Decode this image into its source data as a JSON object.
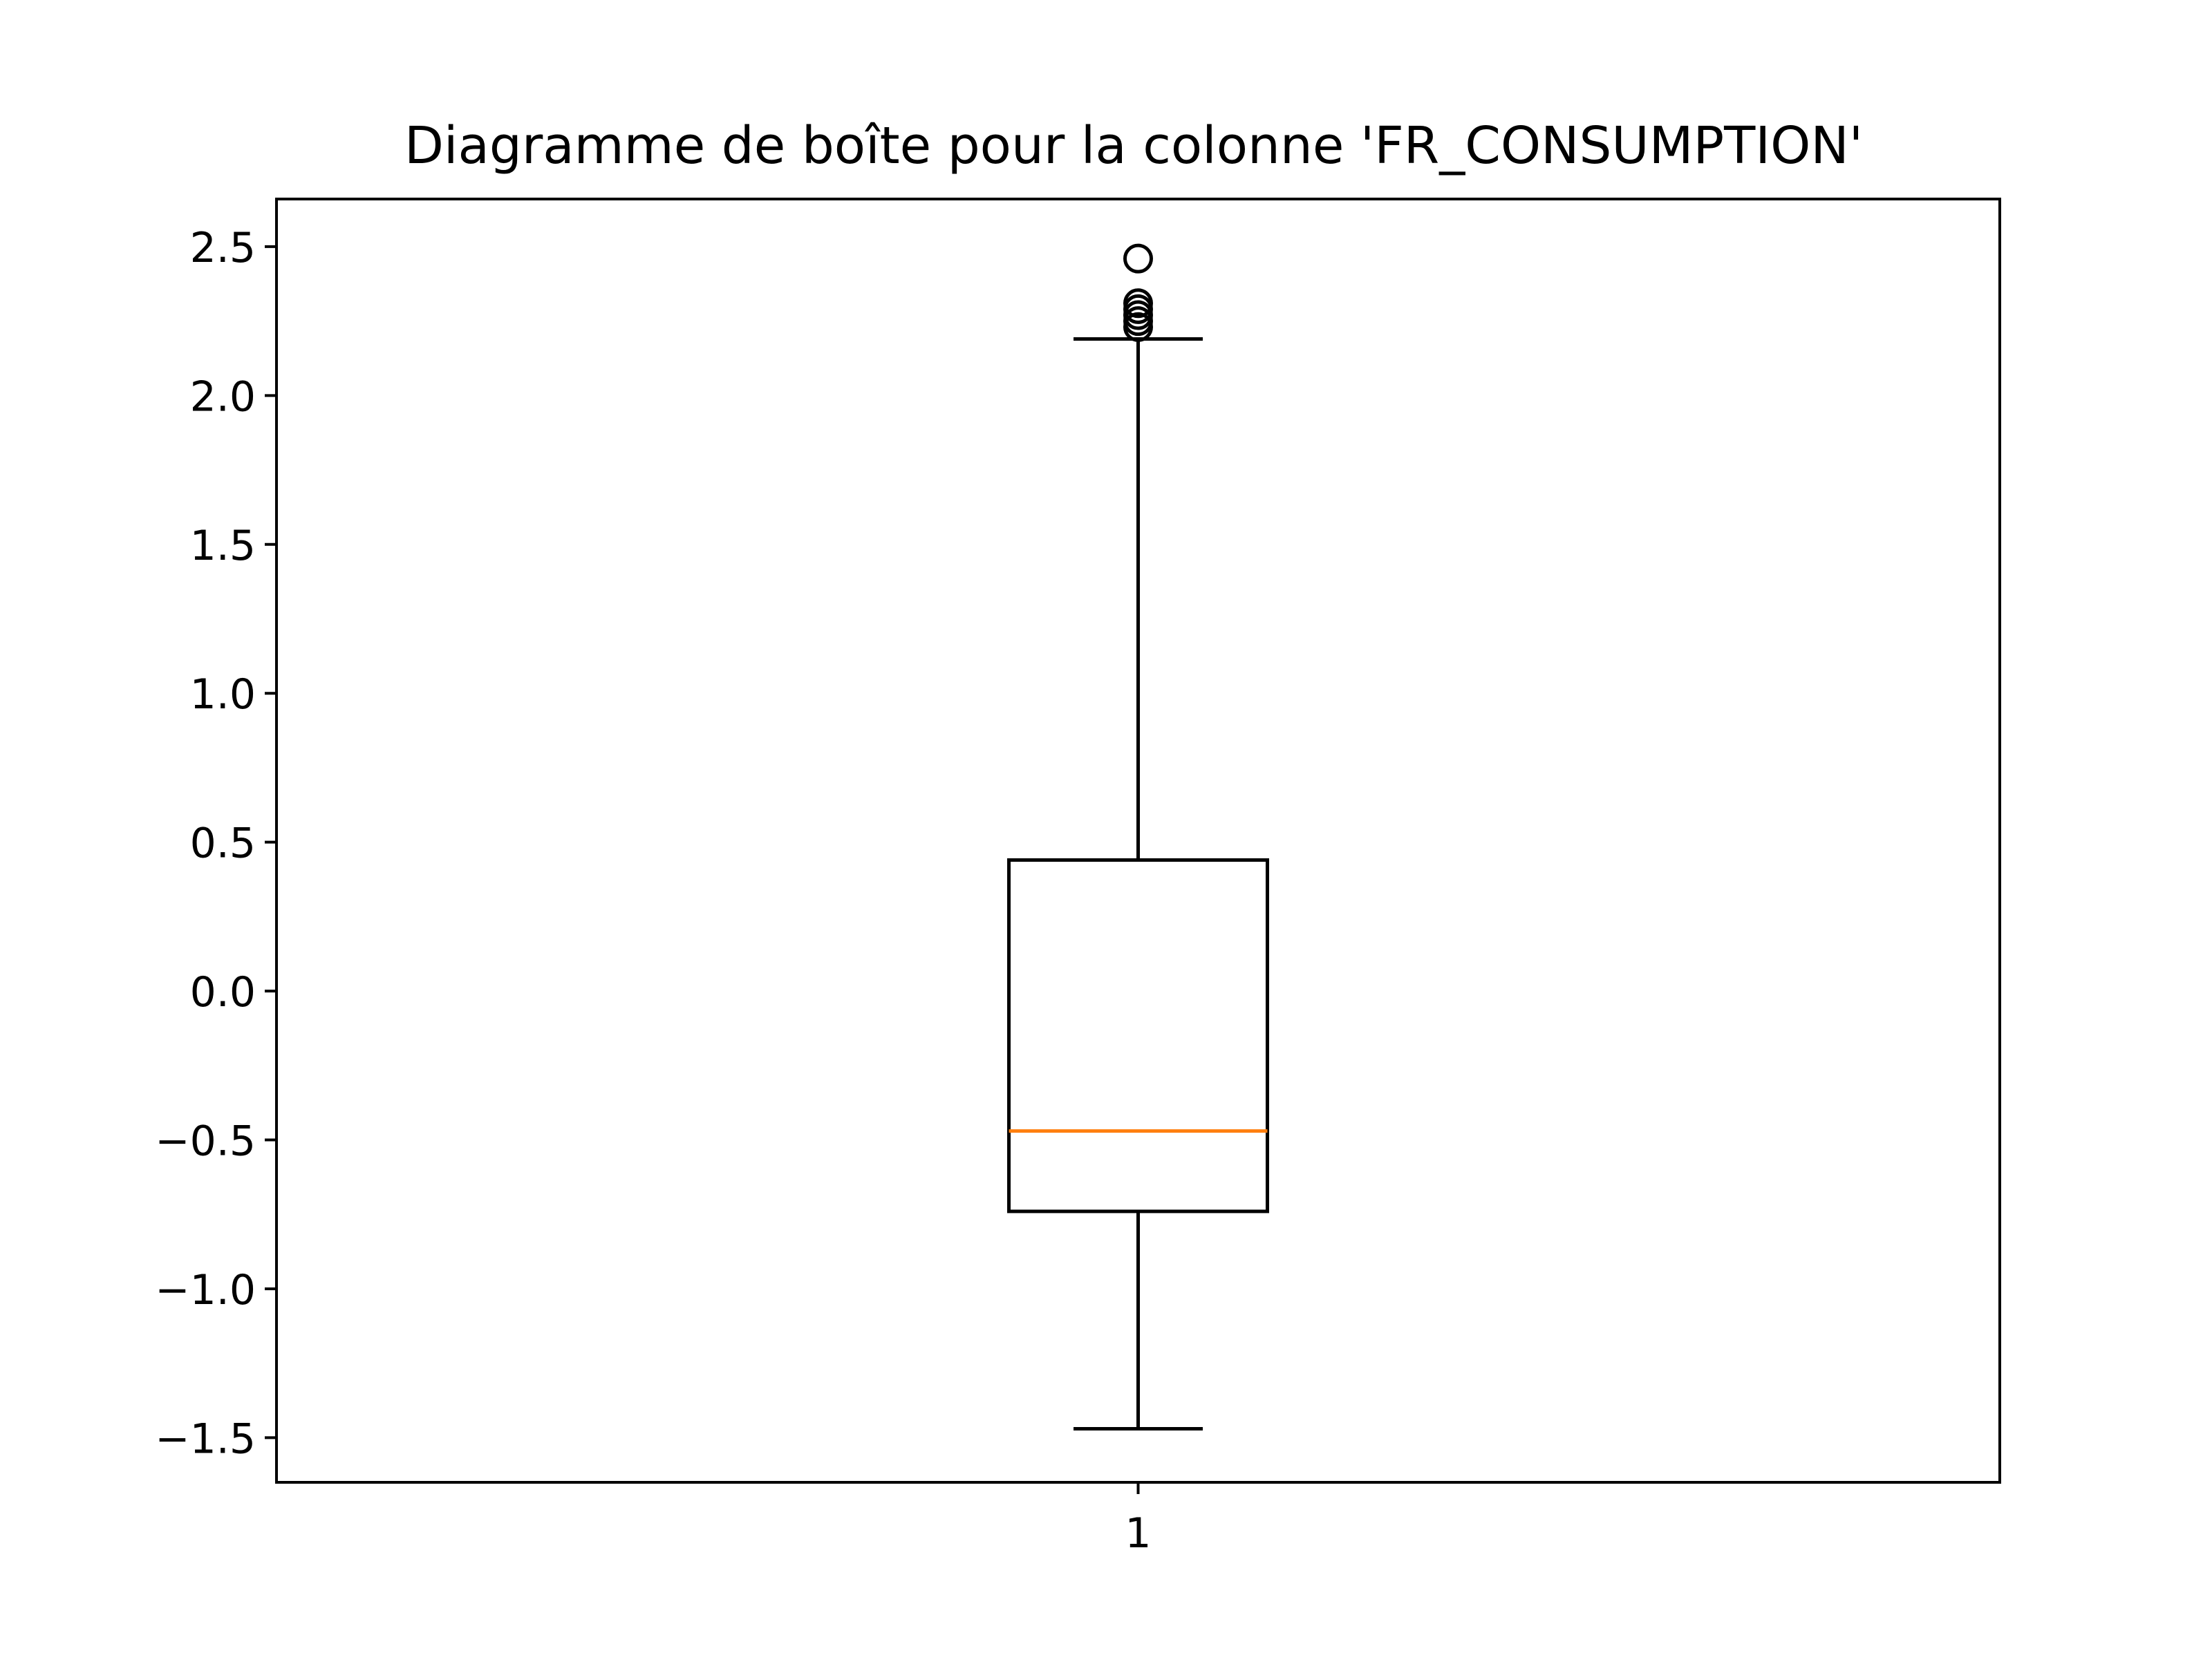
{
  "chart_data": {
    "type": "box",
    "title": "Diagramme de boîte pour la colonne 'FR_CONSUMPTION'",
    "xlabel": "",
    "ylabel": "",
    "categories": [
      "1"
    ],
    "ylim": [
      -1.65,
      2.66
    ],
    "yticks": [
      -1.5,
      -1.0,
      -0.5,
      0.0,
      0.5,
      1.0,
      1.5,
      2.0,
      2.5
    ],
    "ytick_labels": [
      "−1.5",
      "−1.0",
      "−0.5",
      "0.0",
      "0.5",
      "1.0",
      "1.5",
      "2.0",
      "2.5"
    ],
    "boxes": [
      {
        "category": "1",
        "whisker_low": -1.47,
        "q1": -0.74,
        "median": -0.47,
        "q3": 0.44,
        "whisker_high": 2.19,
        "outliers": [
          2.23,
          2.25,
          2.27,
          2.29,
          2.31,
          2.46
        ]
      }
    ],
    "grid": false,
    "legend": "none",
    "colors": {
      "box": "#000000",
      "median": "#ff7f0e",
      "outlier": "#000000"
    }
  }
}
